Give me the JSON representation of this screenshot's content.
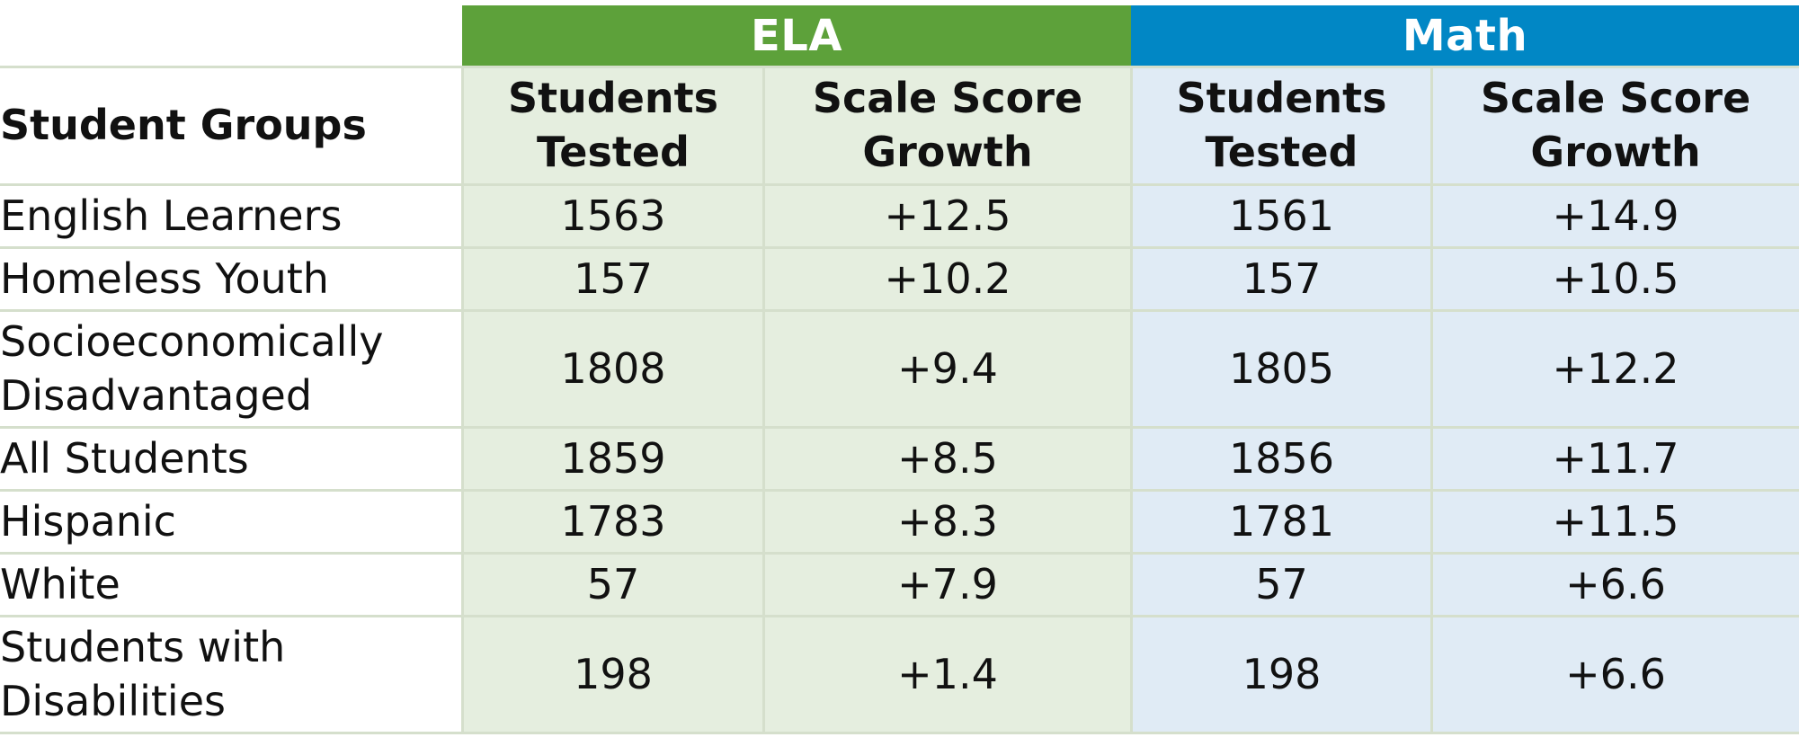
{
  "colors": {
    "ela": "#5da13a",
    "math": "#0187c5",
    "ela_fill": "#e5eedf",
    "math_fill": "#e0ebf5",
    "grid": "#d5dfcc"
  },
  "chart_data": {
    "type": "table",
    "groups": [
      {
        "label": "ELA",
        "columns": [
          "Students Tested",
          "Scale Score Growth"
        ]
      },
      {
        "label": "Math",
        "columns": [
          "Students Tested",
          "Scale Score Growth"
        ]
      }
    ],
    "row_header": "Student Groups",
    "columns": [
      "Student Groups",
      "ELA Students Tested",
      "ELA Scale Score Growth",
      "Math Students Tested",
      "Math Scale Score Growth"
    ],
    "rows": [
      {
        "group": "English Learners",
        "ela_tested": "1563",
        "ela_growth": "+12.5",
        "math_tested": "1561",
        "math_growth": "+14.9"
      },
      {
        "group": "Homeless Youth",
        "ela_tested": "157",
        "ela_growth": "+10.2",
        "math_tested": "157",
        "math_growth": "+10.5"
      },
      {
        "group": "Socioeconomically Disadvantaged",
        "ela_tested": "1808",
        "ela_growth": "+9.4",
        "math_tested": "1805",
        "math_growth": "+12.2"
      },
      {
        "group": "All Students",
        "ela_tested": "1859",
        "ela_growth": "+8.5",
        "math_tested": "1856",
        "math_growth": "+11.7"
      },
      {
        "group": "Hispanic",
        "ela_tested": "1783",
        "ela_growth": "+8.3",
        "math_tested": "1781",
        "math_growth": "+11.5"
      },
      {
        "group": "White",
        "ela_tested": "57",
        "ela_growth": "+7.9",
        "math_tested": "57",
        "math_growth": "+6.6"
      },
      {
        "group": "Students with Disabilities",
        "ela_tested": "198",
        "ela_growth": "+1.4",
        "math_tested": "198",
        "math_growth": "+6.6"
      }
    ]
  },
  "header": {
    "ela": "ELA",
    "math": "Math",
    "student_groups": "Student Groups",
    "students_tested": "Students Tested",
    "scale_score_growth": "Scale Score Growth"
  }
}
